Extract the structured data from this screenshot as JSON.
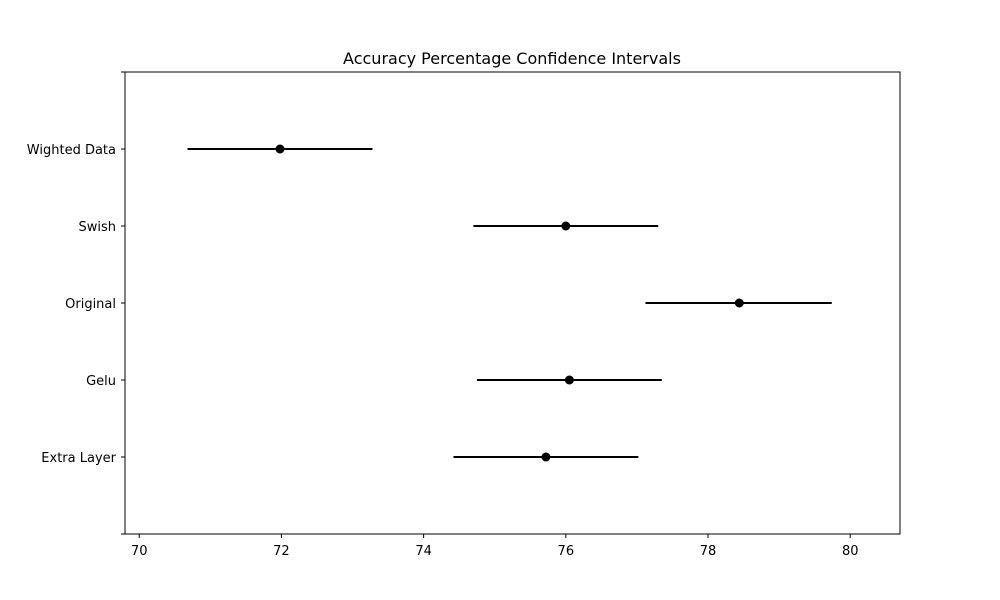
{
  "chart_data": {
    "type": "errorbar",
    "title": "Accuracy Percentage Confidence Intervals",
    "xlabel": "",
    "ylabel": "",
    "xlim": [
      69.8,
      80.7
    ],
    "xticks": [
      70,
      72,
      74,
      76,
      78,
      80
    ],
    "grid": false,
    "colors": {
      "marker": "#000000",
      "errorbar": "#000000",
      "axes": "#000000",
      "background": "#ffffff"
    },
    "categories": [
      "Extra Layer",
      "Gelu",
      "Original",
      "Swish",
      "Wighted Data"
    ],
    "points": [
      {
        "label": "Extra Layer",
        "mean": 75.72,
        "lower": 74.42,
        "upper": 77.02
      },
      {
        "label": "Gelu",
        "mean": 76.05,
        "lower": 74.75,
        "upper": 77.35
      },
      {
        "label": "Original",
        "mean": 78.44,
        "lower": 77.12,
        "upper": 79.74
      },
      {
        "label": "Swish",
        "mean": 76.0,
        "lower": 74.7,
        "upper": 77.3
      },
      {
        "label": "Wighted Data",
        "mean": 71.98,
        "lower": 70.68,
        "upper": 73.28
      }
    ]
  }
}
